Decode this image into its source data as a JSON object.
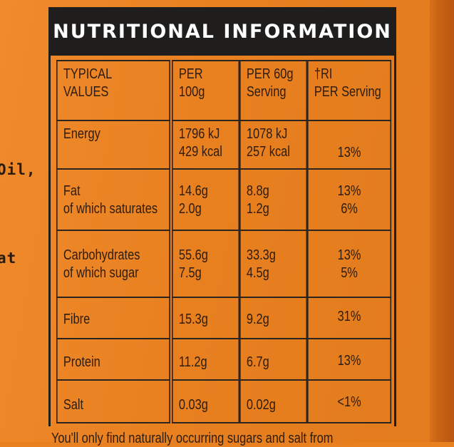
{
  "header": {
    "title": "NUTRITIONAL INFORMATION"
  },
  "left_fragments": [
    "Oil,",
    "at"
  ],
  "columns": {
    "c1": [
      "TYPICAL",
      "VALUES"
    ],
    "c2": [
      "PER",
      "100g"
    ],
    "c3": [
      "PER 60g",
      "Serving"
    ],
    "c4": [
      "†RI",
      "PER Serving"
    ]
  },
  "rows": [
    {
      "label": [
        "Energy"
      ],
      "per100": [
        "1796 kJ",
        "429 kcal"
      ],
      "per60": [
        "1078 kJ",
        "257 kcal"
      ],
      "ri": [
        "13%"
      ]
    },
    {
      "label": [
        "Fat",
        "of which saturates"
      ],
      "per100": [
        "14.6g",
        "2.0g"
      ],
      "per60": [
        "8.8g",
        "1.2g"
      ],
      "ri": [
        "13%",
        "6%"
      ]
    },
    {
      "label": [
        "Carbohydrates",
        "of which sugar"
      ],
      "per100": [
        "55.6g",
        "7.5g"
      ],
      "per60": [
        "33.3g",
        "4.5g"
      ],
      "ri": [
        "13%",
        "5%"
      ]
    },
    {
      "label": [
        "Fibre"
      ],
      "per100": [
        "15.3g"
      ],
      "per60": [
        "9.2g"
      ],
      "ri": [
        "31%"
      ]
    },
    {
      "label": [
        "Protein"
      ],
      "per100": [
        "11.2g"
      ],
      "per60": [
        "6.7g"
      ],
      "ri": [
        "13%"
      ]
    },
    {
      "label": [
        "Salt"
      ],
      "per100": [
        "0.03g"
      ],
      "per60": [
        "0.02g"
      ],
      "ri": [
        "<1%"
      ]
    }
  ],
  "footer": {
    "text": "You'll only find naturally occurring sugars and salt from"
  },
  "colors": {
    "background": "#e9801f",
    "header": "#1f1e1c",
    "text": "#2e1c0e"
  }
}
